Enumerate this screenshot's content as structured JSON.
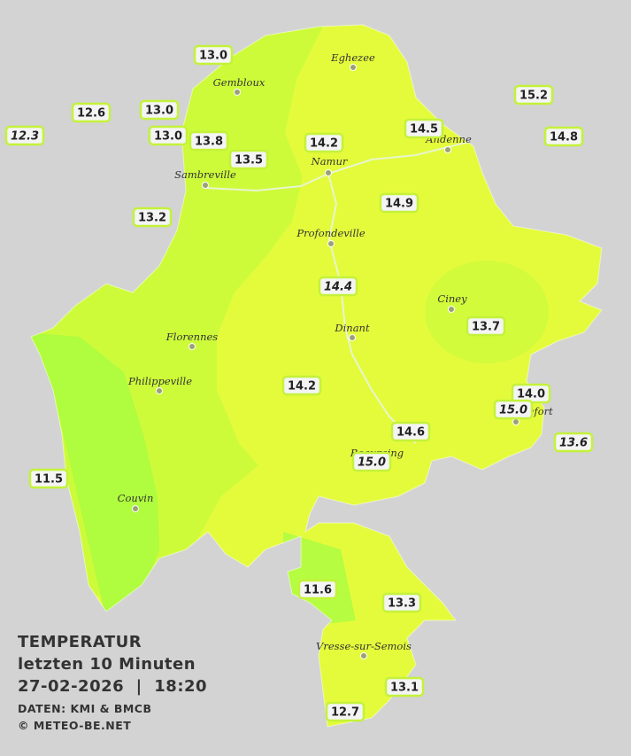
{
  "legend": {
    "title": "TEMPERATUR",
    "period": "letzten 10 Minuten",
    "datetime": "27-02-2026  |  18:20",
    "source": "DATEN: KMI & BMCB",
    "copyright": "© METEO-BE.NET"
  },
  "towns": [
    "Eghezee",
    "Gembloux",
    "Andenne",
    "Namur",
    "Sambreville",
    "Profondeville",
    "Ciney",
    "Dinant",
    "Florennes",
    "Philippeville",
    "Rochefort",
    "Beauraing",
    "Couvin",
    "Vresse-sur-Semois"
  ],
  "stations": [
    "13.0",
    "12.6",
    "13.0",
    "12.3",
    "13.0",
    "13.8",
    "13.5",
    "14.2",
    "14.5",
    "15.2",
    "14.8",
    "13.2",
    "14.9",
    "14.4",
    "13.7",
    "14.2",
    "14.0",
    "15.0",
    "13.6",
    "14.6",
    "15.0",
    "11.5",
    "11.6",
    "13.3",
    "13.1",
    "12.7"
  ]
}
